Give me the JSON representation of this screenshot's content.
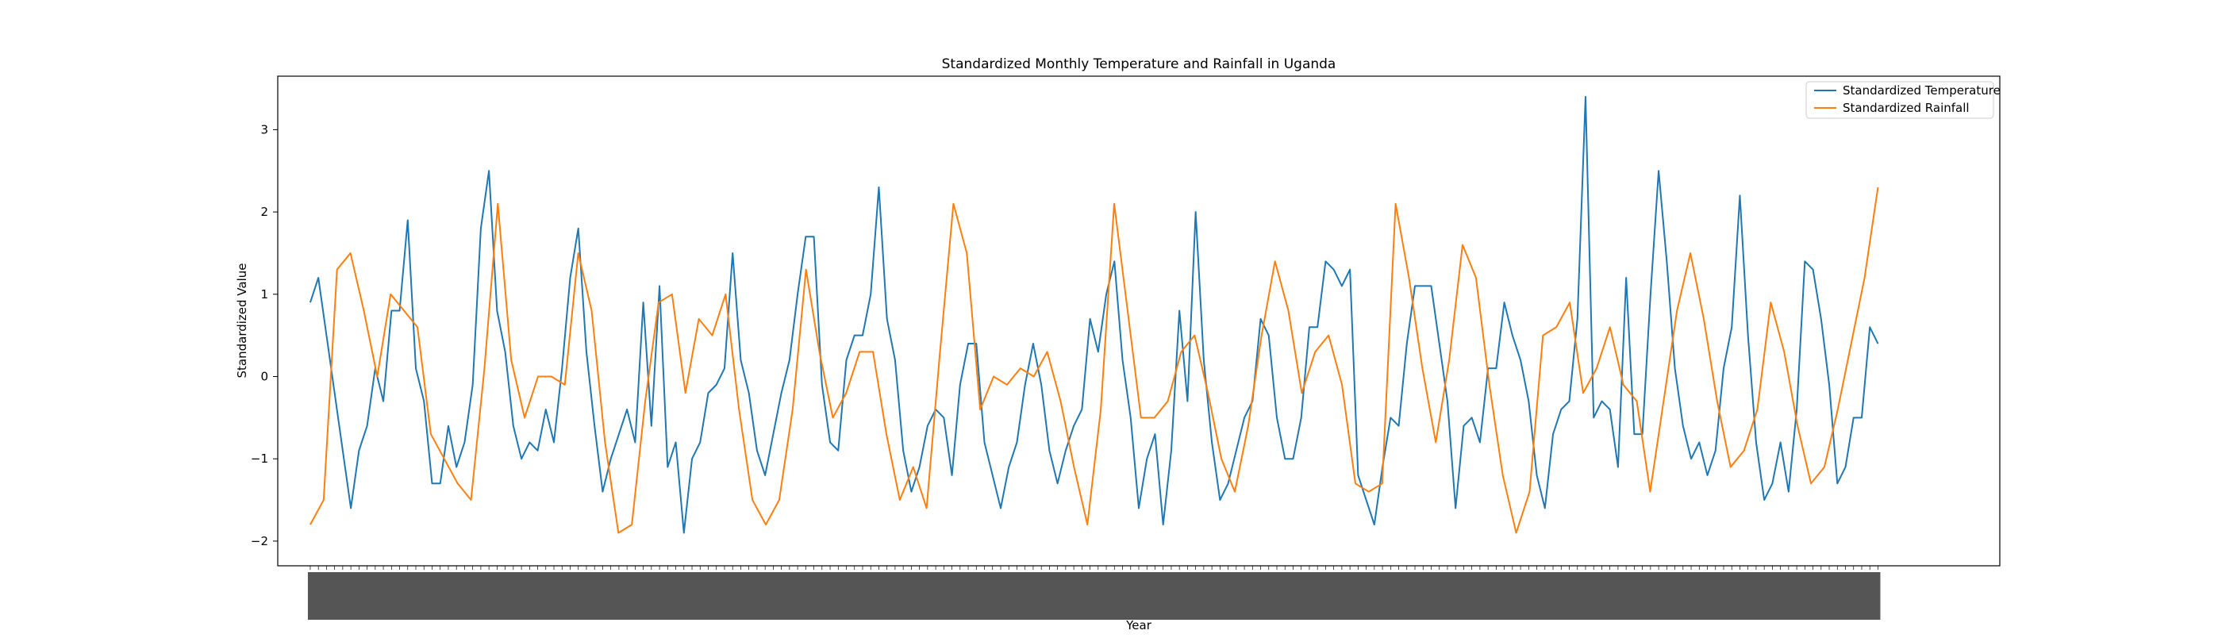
{
  "chart_data": {
    "type": "line",
    "title": "Standardized Monthly Temperature and Rainfall in Uganda",
    "xlabel": "Year",
    "ylabel": "Standardized Value",
    "ylim": [
      -2.3,
      3.65
    ],
    "yticks": [
      -2,
      -1,
      0,
      1,
      2,
      3
    ],
    "xlim": [
      -4,
      208
    ],
    "grid": false,
    "legend_position": "upper right",
    "x_tick_labels_note": "",
    "series": [
      {
        "name": "Standardized Temperature",
        "color": "#1f77b4",
        "values": [
          0.9,
          1.2,
          0.5,
          -0.2,
          -0.9,
          -1.6,
          -0.9,
          -0.6,
          0.1,
          -0.3,
          0.8,
          0.8,
          1.9,
          0.1,
          -0.3,
          -1.3,
          -1.3,
          -0.6,
          -1.1,
          -0.8,
          -0.1,
          1.8,
          2.5,
          0.8,
          0.3,
          -0.6,
          -1.0,
          -0.8,
          -0.9,
          -0.4,
          -0.8,
          0.1,
          1.2,
          1.8,
          0.3,
          -0.6,
          -1.4,
          -1.0,
          -0.7,
          -0.4,
          -0.8,
          0.9,
          -0.6,
          1.1,
          -1.1,
          -0.8,
          -1.9,
          -1.0,
          -0.8,
          -0.2,
          -0.1,
          0.1,
          1.5,
          0.2,
          -0.2,
          -0.9,
          -1.2,
          -0.7,
          -0.2,
          0.2,
          1.0,
          1.7,
          1.7,
          -0.1,
          -0.8,
          -0.9,
          0.2,
          0.5,
          0.5,
          1.0,
          2.3,
          0.7,
          0.2,
          -0.9,
          -1.4,
          -1.1,
          -0.6,
          -0.4,
          -0.5,
          -1.2,
          -0.1,
          0.4,
          0.4,
          -0.8,
          -1.2,
          -1.6,
          -1.1,
          -0.8,
          -0.1,
          0.4,
          -0.1,
          -0.9,
          -1.3,
          -0.9,
          -0.6,
          -0.4,
          0.7,
          0.3,
          1.0,
          1.4,
          0.2,
          -0.5,
          -1.6,
          -1.0,
          -0.7,
          -1.8,
          -0.9,
          0.8,
          -0.3,
          2.0,
          0.2,
          -0.8,
          -1.5,
          -1.3,
          -0.9,
          -0.5,
          -0.3,
          0.7,
          0.5,
          -0.5,
          -1.0,
          -1.0,
          -0.5,
          0.6,
          0.6,
          1.4,
          1.3,
          1.1,
          1.3,
          -1.2,
          -1.5,
          -1.8,
          -1.1,
          -0.5,
          -0.6,
          0.4,
          1.1,
          1.1,
          1.1,
          0.4,
          -0.3,
          -1.6,
          -0.6,
          -0.5,
          -0.8,
          0.1,
          0.1,
          0.9,
          0.5,
          0.2,
          -0.3,
          -1.2,
          -1.6,
          -0.7,
          -0.4,
          -0.3,
          0.7,
          3.4,
          -0.5,
          -0.3,
          -0.4,
          -1.1,
          1.2,
          -0.7,
          -0.7,
          1.0,
          2.5,
          1.4,
          0.1,
          -0.6,
          -1.0,
          -0.8,
          -1.2,
          -0.9,
          0.1,
          0.6,
          2.2,
          0.5,
          -0.8,
          -1.5,
          -1.3,
          -0.8,
          -1.4,
          -0.4,
          1.4,
          1.3,
          0.7,
          -0.1,
          -1.3,
          -1.1,
          -0.5,
          -0.5,
          0.6,
          0.4
        ],
        "_x_note": ""
      },
      {
        "name": "Standardized Rainfall",
        "color": "#ff7f0e",
        "values": [
          -1.8,
          -1.5,
          1.3,
          1.5,
          0.8,
          0.0,
          1.0,
          0.8,
          0.6,
          -0.7,
          -1.0,
          -1.3,
          -1.5,
          0.1,
          2.1,
          0.2,
          -0.5,
          0.0,
          0.0,
          -0.1,
          1.5,
          0.8,
          -0.8,
          -1.9,
          -1.8,
          -0.3,
          0.9,
          1.0,
          -0.2,
          0.7,
          0.5,
          1.0,
          -0.4,
          -1.5,
          -1.8,
          -1.5,
          -0.4,
          1.3,
          0.3,
          -0.5,
          -0.2,
          0.3,
          0.3,
          -0.7,
          -1.5,
          -1.1,
          -1.6,
          0.3,
          2.1,
          1.5,
          -0.4,
          0.0,
          -0.1,
          0.1,
          0.0,
          0.3,
          -0.3,
          -1.1,
          -1.8,
          -0.4,
          2.1,
          0.8,
          -0.5,
          -0.5,
          -0.3,
          0.3,
          0.5,
          -0.2,
          -1.0,
          -1.4,
          -0.6,
          0.5,
          1.4,
          0.8,
          -0.2,
          0.3,
          0.5,
          -0.1,
          -1.3,
          -1.4,
          -1.3,
          2.1,
          1.2,
          0.1,
          -0.8,
          0.2,
          1.6,
          1.2,
          -0.1,
          -1.2,
          -1.9,
          -1.4,
          0.5,
          0.6,
          0.9,
          -0.2,
          0.1,
          0.6,
          -0.1,
          -0.3,
          -1.4,
          -0.3,
          0.8,
          1.5,
          0.7,
          -0.3,
          -1.1,
          -0.9,
          -0.4,
          0.9,
          0.3,
          -0.6,
          -1.3,
          -1.1,
          -0.4,
          0.4,
          1.2,
          2.3
        ],
        "_x_note": ""
      }
    ]
  }
}
